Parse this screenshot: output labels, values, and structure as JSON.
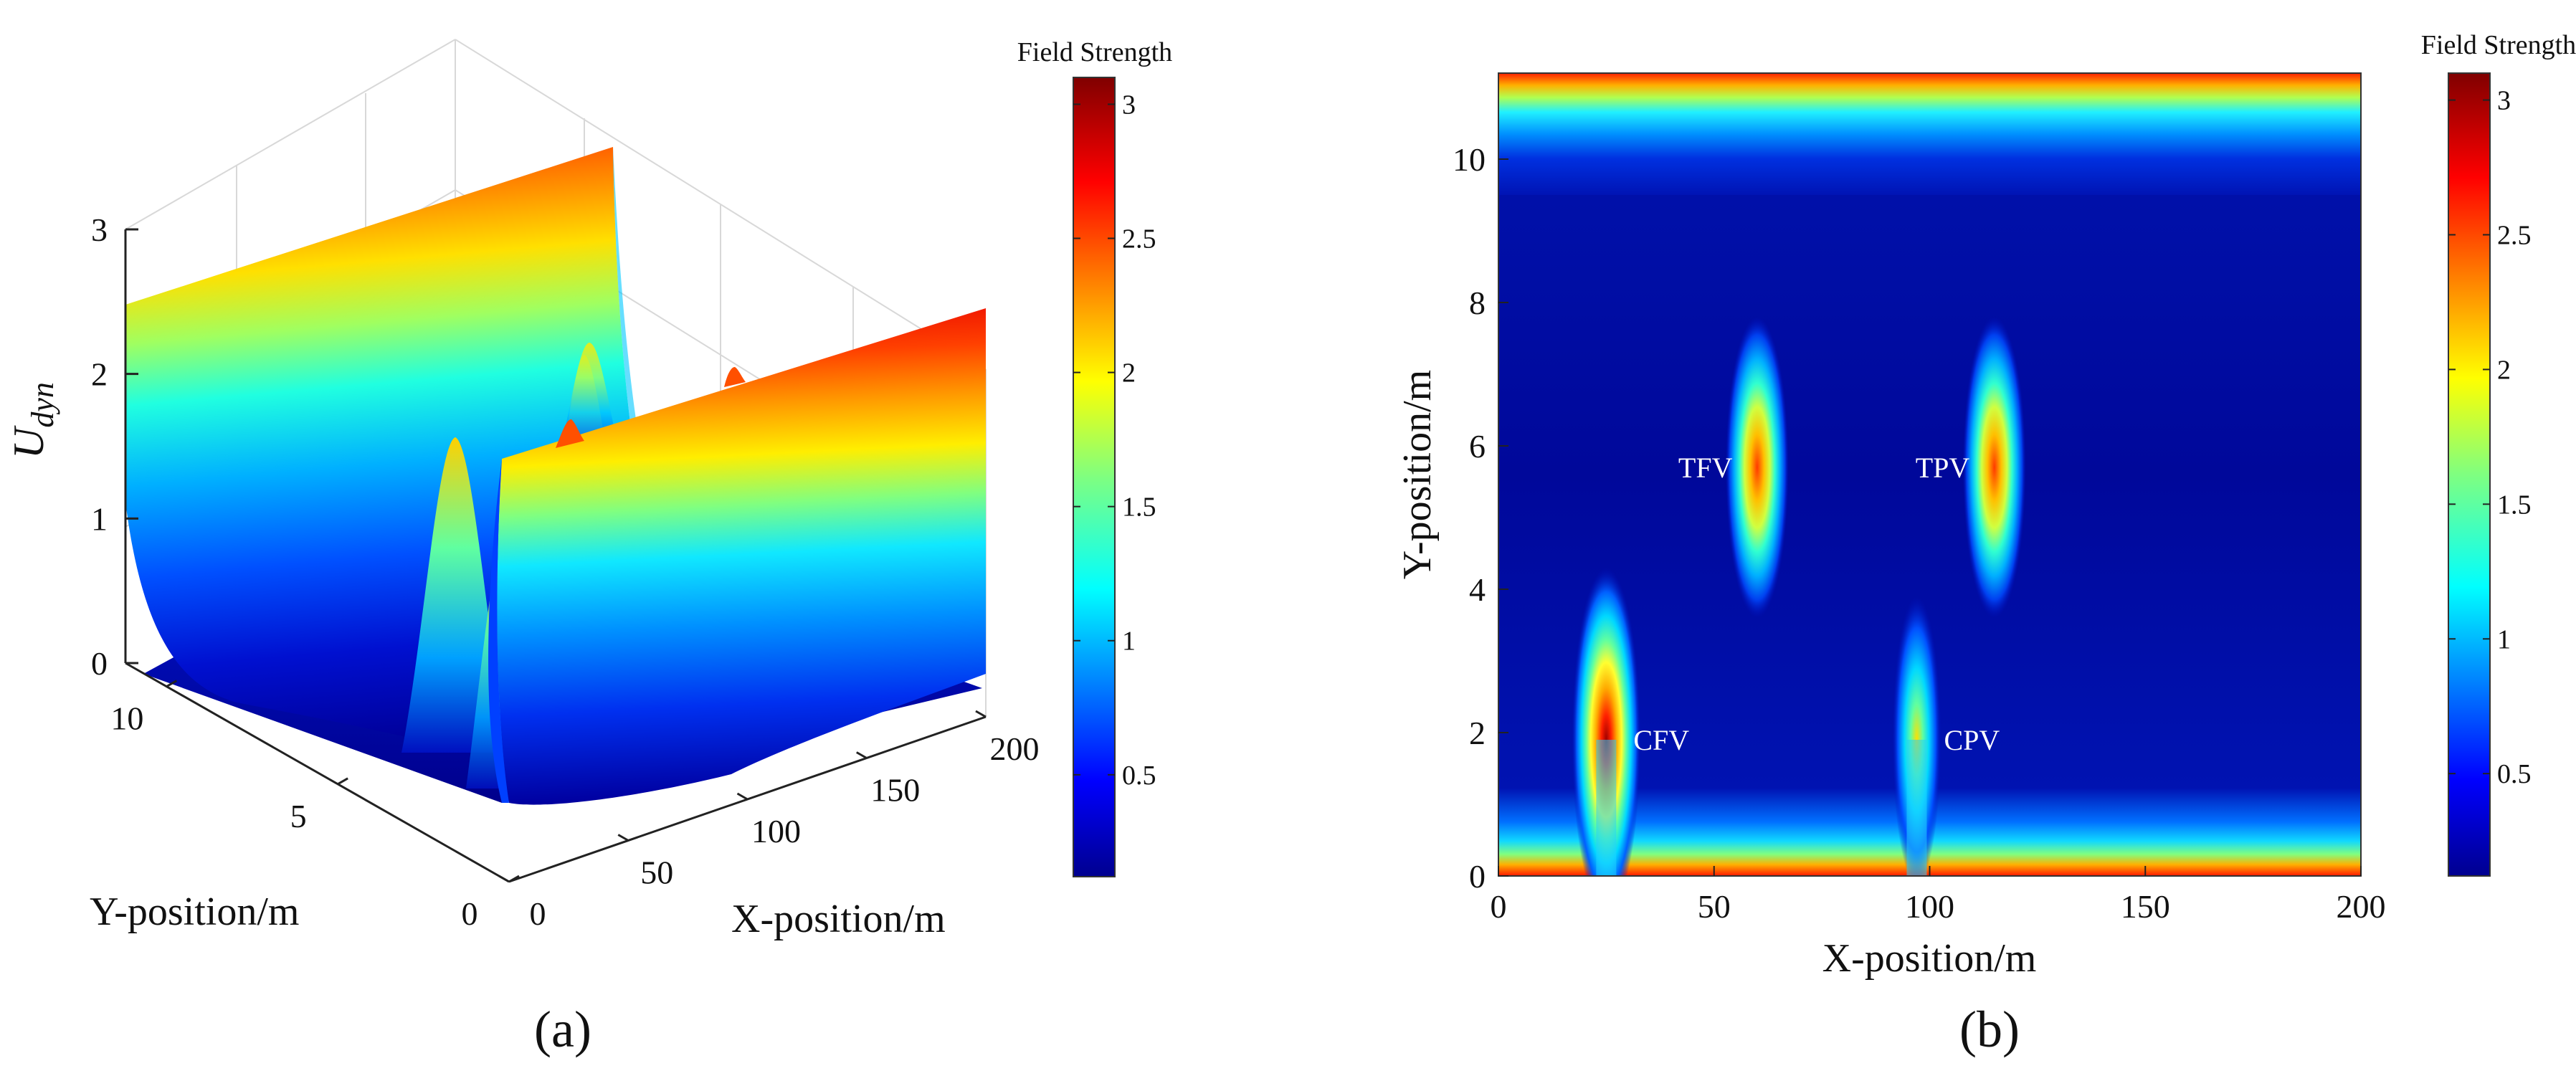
{
  "figure": {
    "panel_a_label": "(a)",
    "panel_b_label": "(b)"
  },
  "chart_data": [
    {
      "type": "surface3d",
      "panel": "(a)",
      "title": "",
      "colorbar_title": "Field Strength",
      "xlabel": "X-position/m",
      "ylabel": "Y-position/m",
      "zlabel_main": "U",
      "zlabel_sub": "dyn",
      "xlim": [
        0,
        200
      ],
      "ylim": [
        0,
        11.2
      ],
      "zlim": [
        0,
        3
      ],
      "x_ticks": [
        "0",
        "50",
        "100",
        "150",
        "200"
      ],
      "y_ticks": [
        "0",
        "5",
        "10"
      ],
      "z_ticks": [
        "0",
        "1",
        "2",
        "3"
      ],
      "colorbar_range": [
        0.12,
        3.1
      ],
      "colorbar_ticks": [
        "0.5",
        "1",
        "1.5",
        "2",
        "2.5",
        "3"
      ],
      "colorbar_tick_values": [
        0.5,
        1,
        1.5,
        2,
        2.5,
        3
      ],
      "colormap": "jet",
      "ridges": [
        {
          "name": "boundary y=11.2",
          "y": 11.2,
          "peak": 3.1
        },
        {
          "name": "boundary y=0",
          "y": 0,
          "peak": 3.1
        }
      ],
      "peaks": [
        {
          "x": 25,
          "y": 2,
          "value": 2.9
        },
        {
          "x": 60,
          "y": 5.7,
          "value": 2.25
        },
        {
          "x": 97,
          "y": 2,
          "value": 2.0
        },
        {
          "x": 115,
          "y": 5.7,
          "value": 2.25
        }
      ]
    },
    {
      "type": "heatmap",
      "panel": "(b)",
      "title": "",
      "colorbar_title": "Field Strength",
      "xlabel": "X-position/m",
      "ylabel": "Y-position/m",
      "xlim": [
        0,
        200
      ],
      "ylim": [
        0,
        11.2
      ],
      "x_ticks": [
        0,
        50,
        100,
        150,
        200
      ],
      "y_ticks": [
        0,
        2,
        4,
        6,
        8,
        10
      ],
      "colorbar_range": [
        0.12,
        3.1
      ],
      "colorbar_ticks": [
        "0.5",
        "1",
        "1.5",
        "2",
        "2.5",
        "3"
      ],
      "colorbar_tick_values": [
        0.5,
        1,
        1.5,
        2,
        2.5,
        3
      ],
      "colormap": "jet",
      "background_value": 0.12,
      "boundary_rows": [
        {
          "y": 0,
          "value": 3.1
        },
        {
          "y": 11.2,
          "value": 3.1
        }
      ],
      "hotspots": [
        {
          "label": "CFV",
          "x": 25,
          "y": 1.9,
          "value": 2.9
        },
        {
          "label": "TFV",
          "x": 60,
          "y": 5.7,
          "value": 2.2
        },
        {
          "label": "CPV",
          "x": 97,
          "y": 1.9,
          "value": 1.6
        },
        {
          "label": "TPV",
          "x": 115,
          "y": 5.7,
          "value": 2.4
        }
      ]
    }
  ]
}
